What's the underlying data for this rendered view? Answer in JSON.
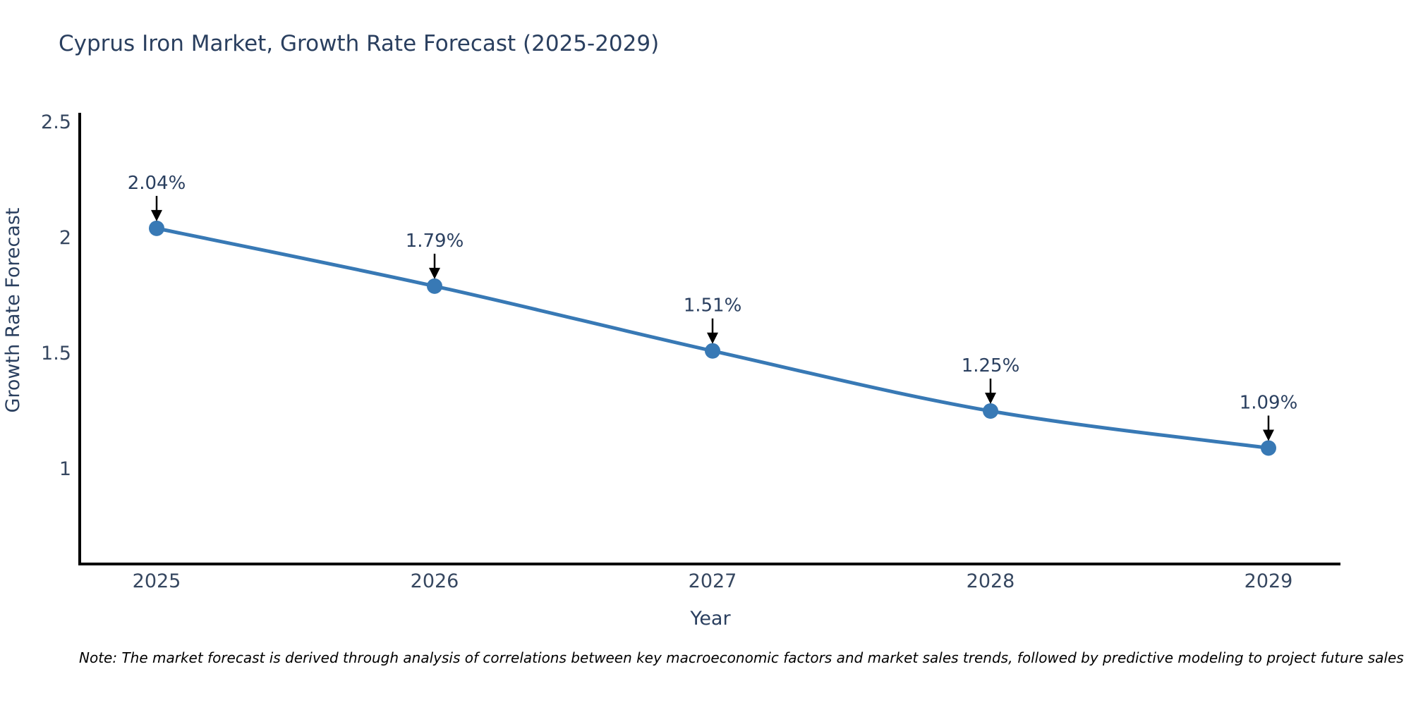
{
  "page": {
    "background_color": "#ffffff"
  },
  "title": "Cyprus Iron Market, Growth Rate Forecast (2025-2029)",
  "note": "Note: The market forecast is derived through analysis of correlations between key macroeconomic factors and market sales trends, followed by predictive modeling to project future sales",
  "chart_data": {
    "type": "line",
    "title": "Cyprus Iron Market, Growth Rate Forecast (2025-2029)",
    "xlabel": "Year",
    "ylabel": "Growth Rate Forecast",
    "x": [
      2025,
      2026,
      2027,
      2028,
      2029
    ],
    "x_ticks": [
      "2025",
      "2026",
      "2027",
      "2028",
      "2029"
    ],
    "y_ticks": [
      2.5,
      2,
      1.5,
      1
    ],
    "ylim": [
      0.59,
      2.54
    ],
    "grid": false,
    "legend": "none",
    "series": [
      {
        "name": "Growth Rate Forecast",
        "values": [
          2.04,
          1.79,
          1.51,
          1.25,
          1.09
        ],
        "point_labels": [
          "2.04%",
          "1.79%",
          "1.51%",
          "1.25%",
          "1.09%"
        ]
      }
    ],
    "colors": {
      "line": "#3879b5",
      "marker": "#3879b5",
      "axis": "#000000",
      "annotation_arrow": "#000000",
      "text": "#2a3f5f"
    }
  }
}
